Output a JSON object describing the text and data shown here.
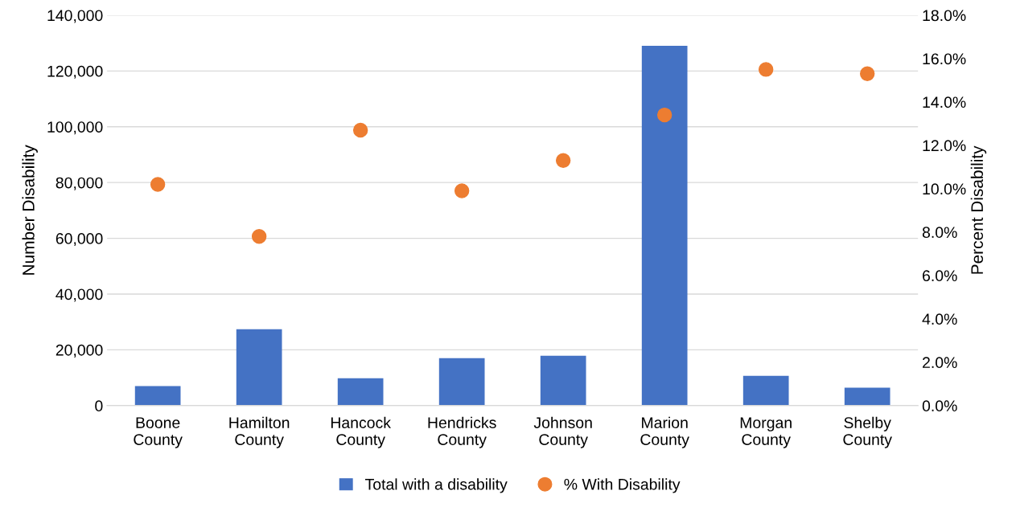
{
  "chart_data": {
    "type": "bar",
    "ylabel": "Number Disability",
    "y2label": "Percent Disability",
    "categories": [
      "Boone\nCounty",
      "Hamilton\nCounty",
      "Hancock\nCounty",
      "Hendricks\nCounty",
      "Johnson\nCounty",
      "Marion\nCounty",
      "Morgan\nCounty",
      "Shelby\nCounty"
    ],
    "series": [
      {
        "name": "Total with a disability",
        "color": "#4472c4",
        "values": [
          7000,
          27400,
          9800,
          17000,
          17900,
          129000,
          10700,
          6400
        ]
      },
      {
        "name": "% With Disability",
        "type": "scatter",
        "axis": "y2",
        "color": "#ed7d31",
        "values": [
          10.2,
          7.8,
          12.7,
          9.9,
          11.3,
          13.4,
          15.5,
          15.3
        ]
      }
    ],
    "ylim": [
      0,
      140000
    ],
    "yticks": [
      {
        "value": 0,
        "label": "0"
      },
      {
        "value": 20000,
        "label": "20,000"
      },
      {
        "value": 40000,
        "label": "40,000"
      },
      {
        "value": 60000,
        "label": "60,000"
      },
      {
        "value": 80000,
        "label": "80,000"
      },
      {
        "value": 100000,
        "label": "100,000"
      },
      {
        "value": 120000,
        "label": "120,000"
      },
      {
        "value": 140000,
        "label": "140,000"
      }
    ],
    "y2lim": [
      0,
      18
    ],
    "y2ticks": [
      {
        "value": 0,
        "label": "0.0%"
      },
      {
        "value": 2,
        "label": "2.0%"
      },
      {
        "value": 4,
        "label": "4.0%"
      },
      {
        "value": 6,
        "label": "6.0%"
      },
      {
        "value": 8,
        "label": "8.0%"
      },
      {
        "value": 10,
        "label": "10.0%"
      },
      {
        "value": 12,
        "label": "12.0%"
      },
      {
        "value": 14,
        "label": "14.0%"
      },
      {
        "value": 16,
        "label": "16.0%"
      },
      {
        "value": 18,
        "label": "18.0%"
      }
    ],
    "grid": "y",
    "legend": "bottom",
    "marker": "circle"
  }
}
